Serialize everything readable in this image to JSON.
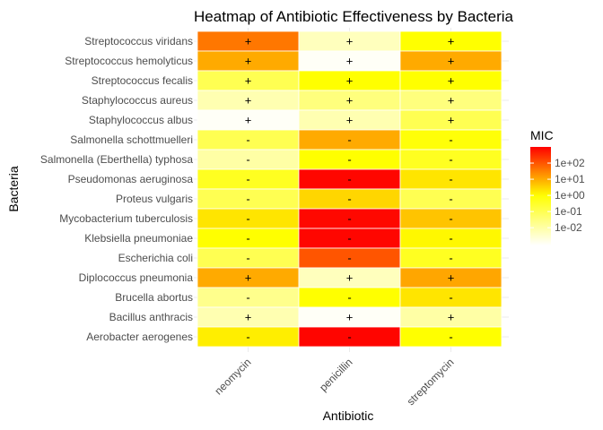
{
  "chart_data": {
    "type": "heatmap",
    "title": "Heatmap of Antibiotic Effectiveness by Bacteria",
    "xlabel": "Antibiotic",
    "ylabel": "Bacteria",
    "x_categories": [
      "neomycin",
      "penicillin",
      "streptomycin"
    ],
    "y_categories": [
      "Streptococcus viridans",
      "Streptococcus hemolyticus",
      "Streptococcus fecalis",
      "Staphylococcus aureus",
      "Staphylococcus albus",
      "Salmonella schottmuelleri",
      "Salmonella (Eberthella) typhosa",
      "Pseudomonas aeruginosa",
      "Proteus vulgaris",
      "Mycobacterium tuberculosis",
      "Klebsiella pneumoniae",
      "Escherichia coli",
      "Diplococcus pneumonia",
      "Brucella abortus",
      "Bacillus anthracis",
      "Aerobacter aerogenes"
    ],
    "values": [
      [
        40,
        0.005,
        1
      ],
      [
        10,
        0.001,
        10
      ],
      [
        0.1,
        1,
        1
      ],
      [
        0.007,
        0.03,
        0.03
      ],
      [
        0.001,
        0.007,
        0.1
      ],
      [
        0.1,
        10,
        0.8
      ],
      [
        0.01,
        1,
        0.4
      ],
      [
        0.4,
        850,
        2
      ],
      [
        0.1,
        3,
        0.1
      ],
      [
        2,
        800,
        5
      ],
      [
        1,
        850,
        1.2
      ],
      [
        0.1,
        100,
        0.4
      ],
      [
        10,
        0.005,
        11
      ],
      [
        0.02,
        1,
        2
      ],
      [
        0.007,
        0.001,
        0.01
      ],
      [
        1.6,
        870,
        1
      ]
    ],
    "gram": [
      [
        "+",
        "+",
        "+"
      ],
      [
        "+",
        "+",
        "+"
      ],
      [
        "+",
        "+",
        "+"
      ],
      [
        "+",
        "+",
        "+"
      ],
      [
        "+",
        "+",
        "+"
      ],
      [
        "-",
        "-",
        "-"
      ],
      [
        "-",
        "-",
        "-"
      ],
      [
        "-",
        "-",
        "-"
      ],
      [
        "-",
        "-",
        "-"
      ],
      [
        "-",
        "-",
        "-"
      ],
      [
        "-",
        "-",
        "-"
      ],
      [
        "-",
        "-",
        "-"
      ],
      [
        "+",
        "+",
        "+"
      ],
      [
        "-",
        "-",
        "-"
      ],
      [
        "+",
        "+",
        "+"
      ],
      [
        "-",
        "-",
        "-"
      ]
    ],
    "color_scale": {
      "title": "MIC",
      "log_scale": true,
      "low_color": "#ffffff",
      "mid_color": "#ffff00",
      "high_color": "#ff0000",
      "breaks": [
        100,
        10,
        1,
        0.1,
        0.01
      ],
      "break_labels": [
        "1e+02",
        "1e+01",
        "1e+00",
        "1e-01",
        "1e-02"
      ]
    },
    "grid": true,
    "legend_position": "right"
  }
}
